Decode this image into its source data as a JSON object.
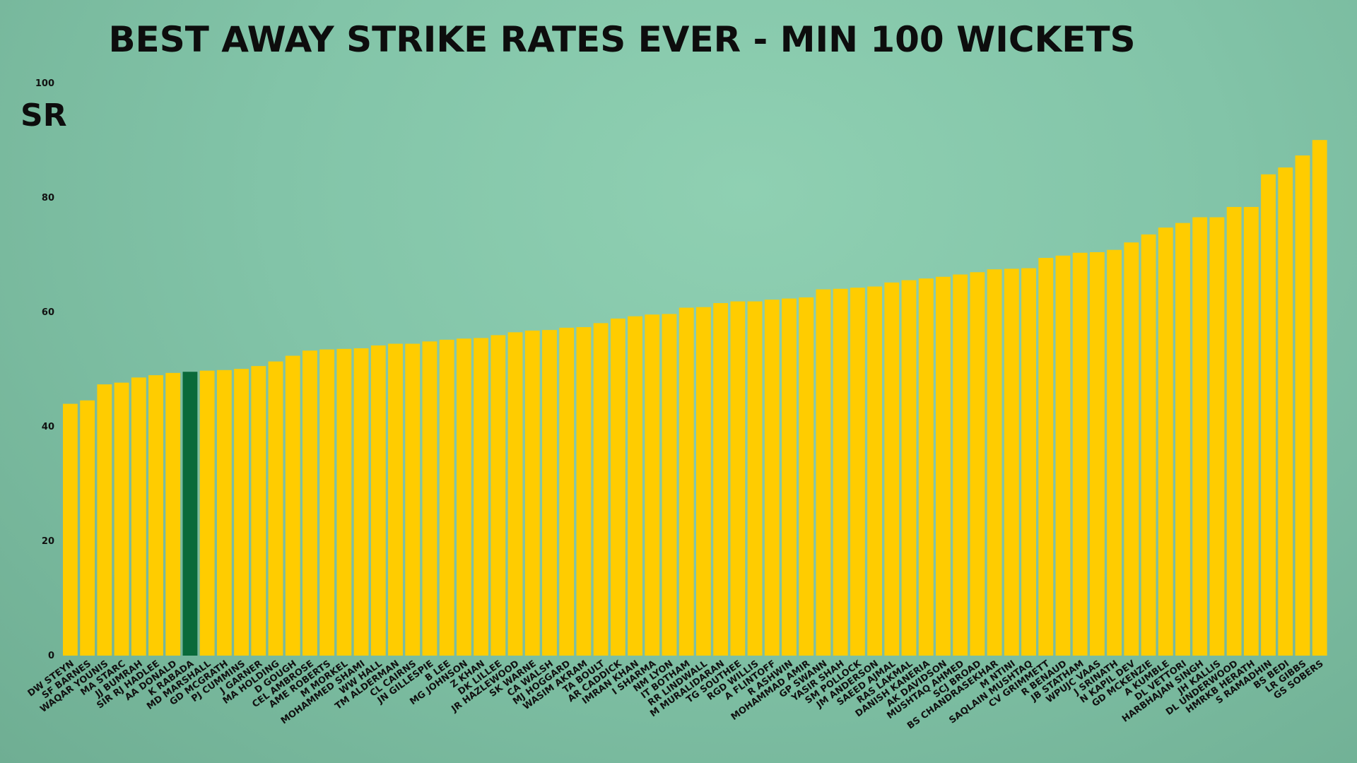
{
  "chart_data": {
    "type": "bar",
    "title": "BEST AWAY STRIKE RATES EVER - MIN 100 WICKETS",
    "xlabel": "",
    "ylabel": "SR",
    "ylim": [
      0,
      100
    ],
    "yticks": [
      0,
      20,
      40,
      60,
      80,
      100
    ],
    "grid": false,
    "legend": "none",
    "colors": {
      "bar": "#ffcc00",
      "highlight": "#0a6a3a",
      "background": "#84c6aa",
      "text": "#0d0d0d"
    },
    "highlight_category": "K RABADA",
    "categories": [
      "DW STEYN",
      "SF BARNES",
      "WAQAR YOUNIS",
      "MA STARC",
      "JJ BUMRAH",
      "SIR RJ HADLEE",
      "AA DONALD",
      "K RABADA",
      "MD MARSHALL",
      "GD MCGRATH",
      "PJ CUMMINS",
      "J GARNER",
      "MA HOLDING",
      "D GOUGH",
      "CEL AMBROSE",
      "AME ROBERTS",
      "M MORKEL",
      "MOHAMMED SHAMI",
      "WW HALL",
      "TM ALDERMAN",
      "CL CAIRNS",
      "JN GILLESPIE",
      "B LEE",
      "MG JOHNSON",
      "Z KHAN",
      "DK LILLEE",
      "JR HAZLEWOOD",
      "SK WARNE",
      "CA WALSH",
      "MJ HOGGARD",
      "WASIM AKRAM",
      "TA BOULT",
      "AR CADDICK",
      "IMRAN KHAN",
      "I SHARMA",
      "NM LYON",
      "IT BOTHAM",
      "RR LINDWALL",
      "M MURALIDARAN",
      "TG SOUTHEE",
      "RGD WILLIS",
      "A FLINTOFF",
      "R ASHWIN",
      "MOHAMMAD AMIR",
      "GP SWANN",
      "YASIR SHAH",
      "SM POLLOCK",
      "JM ANDERSON",
      "SAEED AJMAL",
      "RAS LAKMAL",
      "DANISH KANERIA",
      "AK DAVIDSON",
      "MUSHTAQ AHMED",
      "SCJ BROAD",
      "BS CHANDRASEKHAR",
      "M NTINI",
      "SAQLAIN MUSHTAQ",
      "CV GRIMMETT",
      "R BENAUD",
      "JB STATHAM",
      "WPUJC VAAS",
      "J SRINATH",
      "N KAPIL DEV",
      "GD MCKENZIE",
      "A KUMBLE",
      "DL VETTORI",
      "HARBHAJAN SINGH",
      "JH KALLIS",
      "DL UNDERWOOD",
      "HMRKB HERATH",
      "S RAMADHIN",
      "BS BEDI",
      "LR GIBBS",
      "GS SOBERS"
    ],
    "values": [
      44.0,
      44.6,
      47.4,
      47.7,
      48.6,
      49.0,
      49.4,
      49.6,
      49.8,
      49.9,
      50.1,
      50.6,
      51.4,
      52.4,
      53.3,
      53.5,
      53.6,
      53.7,
      54.2,
      54.5,
      54.5,
      54.9,
      55.2,
      55.4,
      55.5,
      56.0,
      56.5,
      56.8,
      56.9,
      57.3,
      57.4,
      58.1,
      58.9,
      59.3,
      59.6,
      59.7,
      60.8,
      60.9,
      61.6,
      61.9,
      61.9,
      62.2,
      62.4,
      62.6,
      64.0,
      64.1,
      64.3,
      64.5,
      65.2,
      65.6,
      65.9,
      66.2,
      66.6,
      67.0,
      67.5,
      67.6,
      67.7,
      69.5,
      69.9,
      70.4,
      70.5,
      70.9,
      72.2,
      73.6,
      74.8,
      75.6,
      76.6,
      76.6,
      78.4,
      78.4,
      84.1,
      85.3,
      87.4,
      90.1
    ]
  }
}
